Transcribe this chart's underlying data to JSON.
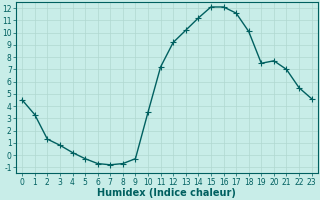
{
  "x": [
    0,
    1,
    2,
    3,
    4,
    5,
    6,
    7,
    8,
    9,
    10,
    11,
    12,
    13,
    14,
    15,
    16,
    17,
    18,
    19,
    20,
    21,
    22,
    23
  ],
  "y": [
    4.5,
    3.3,
    1.3,
    0.8,
    0.2,
    -0.3,
    -0.7,
    -0.8,
    -0.7,
    -0.3,
    3.5,
    7.2,
    9.2,
    10.2,
    11.2,
    12.1,
    12.1,
    11.6,
    10.1,
    7.5,
    7.7,
    7.0,
    5.5,
    4.6
  ],
  "line_color": "#006060",
  "marker": "+",
  "markersize": 4,
  "linewidth": 1.0,
  "background_color": "#c8ede8",
  "grid_color": "#b0d8d0",
  "xlabel": "Humidex (Indice chaleur)",
  "xlabel_fontsize": 7,
  "tick_fontsize": 5.5,
  "xlim": [
    -0.5,
    23.5
  ],
  "ylim": [
    -1.5,
    12.5
  ],
  "yticks": [
    -1,
    0,
    1,
    2,
    3,
    4,
    5,
    6,
    7,
    8,
    9,
    10,
    11,
    12
  ],
  "xticks": [
    0,
    1,
    2,
    3,
    4,
    5,
    6,
    7,
    8,
    9,
    10,
    11,
    12,
    13,
    14,
    15,
    16,
    17,
    18,
    19,
    20,
    21,
    22,
    23
  ]
}
